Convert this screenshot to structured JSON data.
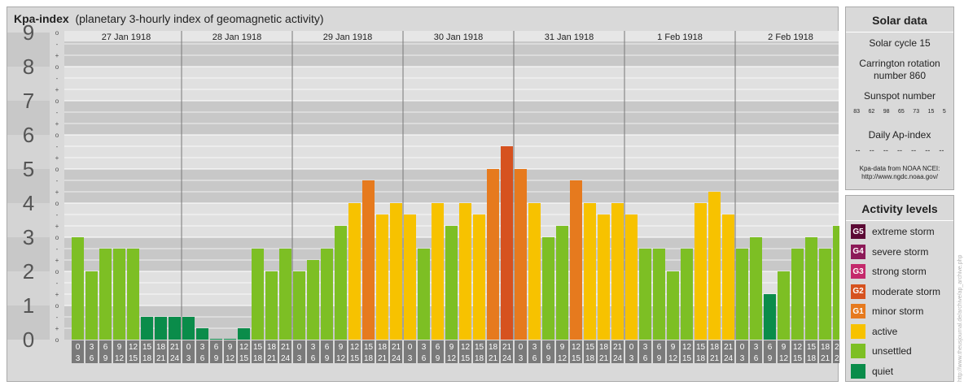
{
  "title": {
    "bold": "Kpa-index",
    "rest": "(planetary 3-hourly index of geomagnetic activity)"
  },
  "chart_data": {
    "type": "bar",
    "y_axis": {
      "ticks": [
        "0",
        "1",
        "2",
        "3",
        "4",
        "5",
        "6",
        "7",
        "8",
        "9"
      ],
      "ylim": [
        0,
        9
      ],
      "subticks": [
        "-",
        "o",
        "+"
      ]
    },
    "days": [
      "27 Jan 1918",
      "28 Jan 1918",
      "29 Jan 1918",
      "30 Jan 1918",
      "31 Jan 1918",
      "1 Feb 1918",
      "2 Feb 1918"
    ],
    "interval_top": [
      "0",
      "3",
      "6",
      "9",
      "12",
      "15",
      "18",
      "21"
    ],
    "interval_bottom": [
      "3",
      "6",
      "9",
      "12",
      "15",
      "18",
      "21",
      "24"
    ],
    "values": [
      3.0,
      2.0,
      2.667,
      2.667,
      2.667,
      0.667,
      0.667,
      0.667,
      0.667,
      0.333,
      0.0,
      0.0,
      0.333,
      2.667,
      2.0,
      2.667,
      2.0,
      2.333,
      2.667,
      3.333,
      4.0,
      4.667,
      3.667,
      4.0,
      3.667,
      2.667,
      4.0,
      3.333,
      4.0,
      3.667,
      5.0,
      5.667,
      5.0,
      4.0,
      3.0,
      3.333,
      4.667,
      4.0,
      3.667,
      4.0,
      3.667,
      2.667,
      2.667,
      2.0,
      2.667,
      4.0,
      4.333,
      3.667,
      2.667,
      3.0,
      1.333,
      2.0,
      2.667,
      3.0,
      2.667,
      3.333
    ],
    "level_colors": {
      "quiet": "#0a8c4a",
      "unsettled": "#7dbf24",
      "active": "#f7c200",
      "G1": "#e67a1e",
      "G2": "#d6521f",
      "G3": "#c4296b",
      "G4": "#8c1a58",
      "G5": "#5c0a35"
    }
  },
  "solar": {
    "heading": "Solar data",
    "cycle": "Solar cycle 15",
    "carrington_1": "Carrington rotation",
    "carrington_2": "number 860",
    "sunspot_label": "Sunspot number",
    "sunspots": [
      "83",
      "62",
      "98",
      "65",
      "73",
      "15",
      "5"
    ],
    "ap_label": "Daily Ap-index",
    "ap_values": [
      "--",
      "--",
      "--",
      "--",
      "--",
      "--",
      "--"
    ],
    "source_1": "Kpa-data from NOAA NCEI:",
    "source_2": "http://www.ngdc.noaa.gov/"
  },
  "levels": {
    "heading": "Activity levels",
    "items": [
      {
        "badge": "G5",
        "label": "extreme storm",
        "color": "#5c0a35"
      },
      {
        "badge": "G4",
        "label": "severe storm",
        "color": "#8c1a58"
      },
      {
        "badge": "G3",
        "label": "strong storm",
        "color": "#c4296b"
      },
      {
        "badge": "G2",
        "label": "moderate storm",
        "color": "#d6521f"
      },
      {
        "badge": "G1",
        "label": "minor storm",
        "color": "#e67a1e"
      },
      {
        "badge": "",
        "label": "active",
        "color": "#f7c200"
      },
      {
        "badge": "",
        "label": "unsettled",
        "color": "#7dbf24"
      },
      {
        "badge": "",
        "label": "quiet",
        "color": "#0a8c4a"
      }
    ]
  },
  "watermark": "http://www.theusjournal.de/archive/ap_archive.php"
}
